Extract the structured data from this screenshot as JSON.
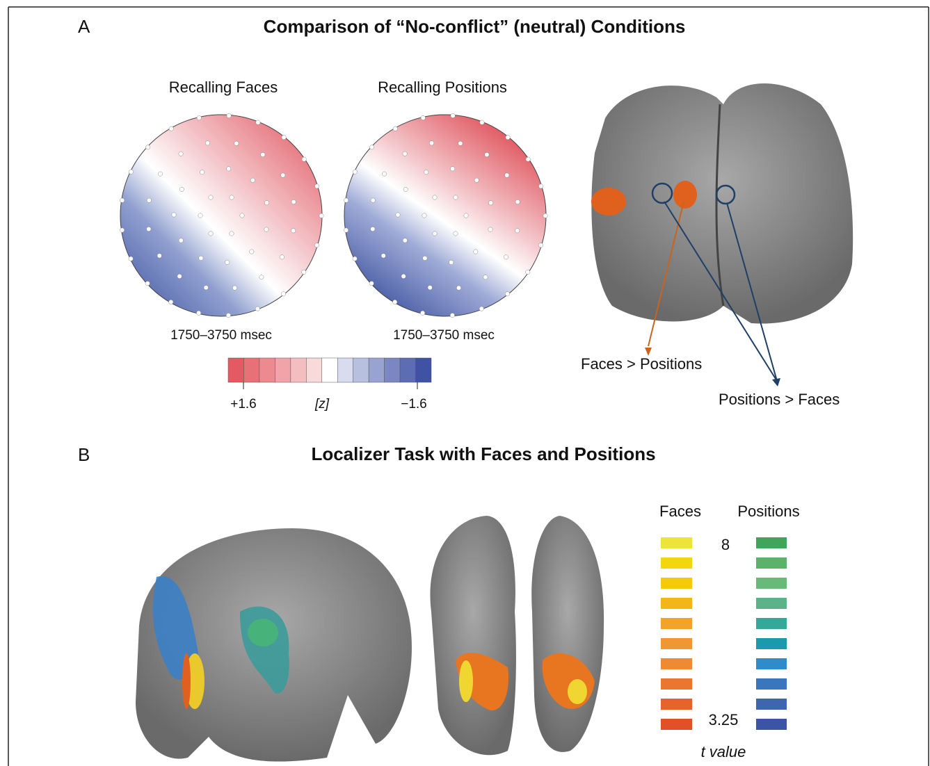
{
  "panel_a": {
    "label": "A",
    "title": "Comparison of “No-conflict” (neutral) Conditions",
    "maps": [
      {
        "title": "Recalling Faces",
        "time": "1750–3750 msec"
      },
      {
        "title": "Recalling Positions",
        "time": "1750–3750 msec"
      }
    ],
    "colorbar": {
      "max_label": "+1.6",
      "unit_label": "[z]",
      "min_label": "−1.6"
    },
    "annotations": [
      "Faces > Positions",
      "Positions > Faces"
    ]
  },
  "panel_b": {
    "label": "B",
    "title": "Localizer Task with Faces and Positions",
    "legend": {
      "faces": "Faces",
      "positions": "Positions",
      "max_label": "8",
      "min_label": "3.25",
      "axis_label": "t value"
    }
  }
}
